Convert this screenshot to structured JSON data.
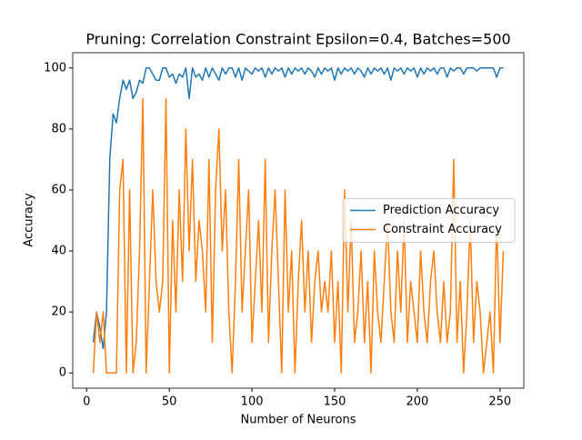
{
  "chart_data": {
    "type": "line",
    "title": "Pruning: Correlation Constraint Epsilon=0.4, Batches=500",
    "x_label": "Number of Neurons",
    "y_label": "Accuracy",
    "x": [
      4,
      6,
      8,
      10,
      12,
      14,
      16,
      18,
      20,
      22,
      24,
      26,
      28,
      30,
      32,
      34,
      36,
      38,
      40,
      42,
      44,
      46,
      48,
      50,
      52,
      54,
      56,
      58,
      60,
      62,
      64,
      66,
      68,
      70,
      72,
      74,
      76,
      78,
      80,
      82,
      84,
      86,
      88,
      90,
      92,
      94,
      96,
      98,
      100,
      102,
      104,
      106,
      108,
      110,
      112,
      114,
      116,
      118,
      120,
      122,
      124,
      126,
      128,
      130,
      132,
      134,
      136,
      138,
      140,
      142,
      144,
      146,
      148,
      150,
      152,
      154,
      156,
      158,
      160,
      162,
      164,
      166,
      168,
      170,
      172,
      174,
      176,
      178,
      180,
      182,
      184,
      186,
      188,
      190,
      192,
      194,
      196,
      198,
      200,
      202,
      204,
      206,
      208,
      210,
      212,
      214,
      216,
      218,
      220,
      222,
      224,
      226,
      228,
      230,
      232,
      234,
      236,
      238,
      240,
      242,
      244,
      246,
      248,
      250,
      252
    ],
    "series": [
      {
        "name": "Prediction Accuracy",
        "color": "#1f77b4",
        "values": [
          10,
          20,
          15,
          8,
          20,
          70,
          85,
          82,
          90,
          96,
          93,
          96,
          90,
          92,
          96,
          95,
          100,
          100,
          98,
          96,
          96,
          100,
          100,
          97,
          98,
          95,
          98,
          97,
          100,
          90,
          100,
          97,
          98,
          96,
          100,
          97,
          100,
          98,
          96,
          100,
          98,
          100,
          100,
          97,
          100,
          96,
          100,
          99,
          98,
          100,
          99,
          100,
          97,
          100,
          98,
          100,
          99,
          100,
          97,
          100,
          98,
          100,
          99,
          100,
          98,
          100,
          99,
          97,
          100,
          98,
          100,
          99,
          100,
          96,
          100,
          98,
          100,
          99,
          100,
          98,
          100,
          99,
          97,
          100,
          98,
          100,
          99,
          100,
          98,
          100,
          96,
          100,
          99,
          100,
          98,
          100,
          99,
          100,
          97,
          100,
          98,
          100,
          99,
          100,
          98,
          100,
          100,
          97,
          100,
          99,
          100,
          100,
          98,
          100,
          100,
          100,
          99,
          100,
          100,
          100,
          100,
          100,
          97,
          100,
          100
        ]
      },
      {
        "name": "Constraint Accuracy",
        "color": "#ff7f0e",
        "values": [
          0,
          20,
          10,
          20,
          0,
          0,
          0,
          0,
          60,
          70,
          0,
          60,
          0,
          10,
          40,
          90,
          0,
          30,
          60,
          30,
          20,
          30,
          90,
          0,
          50,
          20,
          60,
          30,
          80,
          40,
          70,
          30,
          50,
          40,
          20,
          70,
          10,
          60,
          80,
          40,
          60,
          20,
          0,
          30,
          70,
          20,
          40,
          60,
          10,
          30,
          50,
          20,
          70,
          10,
          40,
          60,
          30,
          0,
          60,
          20,
          40,
          0,
          30,
          50,
          20,
          40,
          10,
          30,
          40,
          20,
          30,
          20,
          40,
          10,
          30,
          0,
          60,
          20,
          50,
          10,
          20,
          40,
          10,
          30,
          0,
          40,
          20,
          10,
          30,
          50,
          20,
          10,
          40,
          20,
          50,
          10,
          30,
          20,
          10,
          40,
          20,
          10,
          30,
          40,
          20,
          10,
          30,
          10,
          20,
          70,
          10,
          30,
          0,
          20,
          50,
          10,
          30,
          20,
          0,
          10,
          20,
          0,
          50,
          10,
          40
        ]
      }
    ],
    "xlim": [
      -8.4,
      264.4
    ],
    "xticks": [
      0,
      50,
      100,
      150,
      200,
      250
    ],
    "ylim": [
      -5,
      105
    ],
    "yticks": [
      0,
      20,
      40,
      60,
      80,
      100
    ],
    "legend": "center right"
  }
}
